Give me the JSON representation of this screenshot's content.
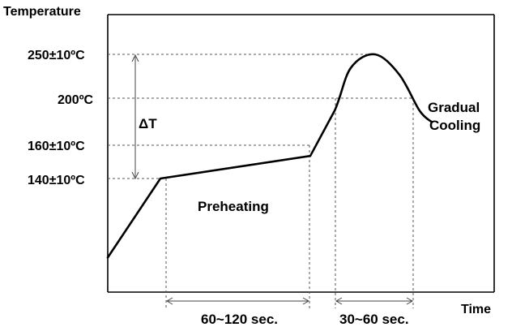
{
  "chart_data": {
    "type": "line",
    "title": "",
    "xlabel": "Time",
    "ylabel": "Temperature",
    "ytick_labels": [
      "250±10ºC",
      "200ºC",
      "160±10ºC",
      "140±10ºC"
    ],
    "yticks": [
      250,
      200,
      160,
      140
    ],
    "delta_label": "ΔT",
    "series": [
      {
        "points": [
          [
            0,
            70
          ],
          [
            65,
            140
          ],
          [
            250,
            160
          ],
          [
            280,
            200
          ],
          [
            300,
            238
          ],
          [
            330,
            250
          ],
          [
            360,
            232
          ],
          [
            385,
            200
          ],
          [
            400,
            190
          ]
        ]
      }
    ],
    "annotations": [
      {
        "text": "Preheating"
      },
      {
        "text": "Gradual"
      },
      {
        "text": "Cooling"
      }
    ],
    "intervals": [
      {
        "label": "60~120 sec."
      },
      {
        "label": "30~60 sec."
      }
    ],
    "grid": false
  }
}
